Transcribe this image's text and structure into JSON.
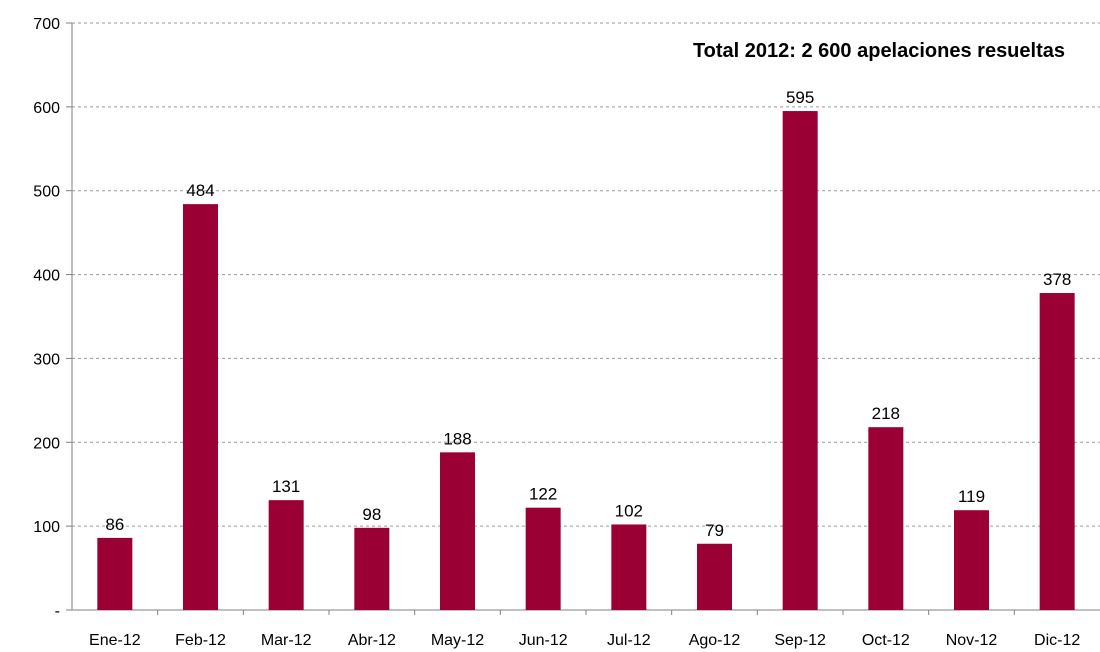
{
  "chart_data": {
    "type": "bar",
    "title": "Total 2012: 2 600 apelaciones resueltas",
    "xlabel": "",
    "ylabel": "",
    "categories": [
      "Ene-12",
      "Feb-12",
      "Mar-12",
      "Abr-12",
      "May-12",
      "Jun-12",
      "Jul-12",
      "Ago-12",
      "Sep-12",
      "Oct-12",
      "Nov-12",
      "Dic-12"
    ],
    "values": [
      86,
      484,
      131,
      98,
      188,
      122,
      102,
      79,
      595,
      218,
      119,
      378
    ],
    "data_labels": [
      "86",
      "484",
      "131",
      "98",
      "188",
      "122",
      "102",
      "79",
      "595",
      "218",
      "119",
      "378"
    ],
    "ylim": [
      0,
      700
    ],
    "yticks": [
      0,
      100,
      200,
      300,
      400,
      500,
      600,
      700
    ],
    "ytick_labels": [
      "-",
      "100",
      "200",
      "300",
      "400",
      "500",
      "600",
      "700"
    ],
    "grid": true,
    "legend": "none",
    "bar_color": "#9b0034"
  }
}
